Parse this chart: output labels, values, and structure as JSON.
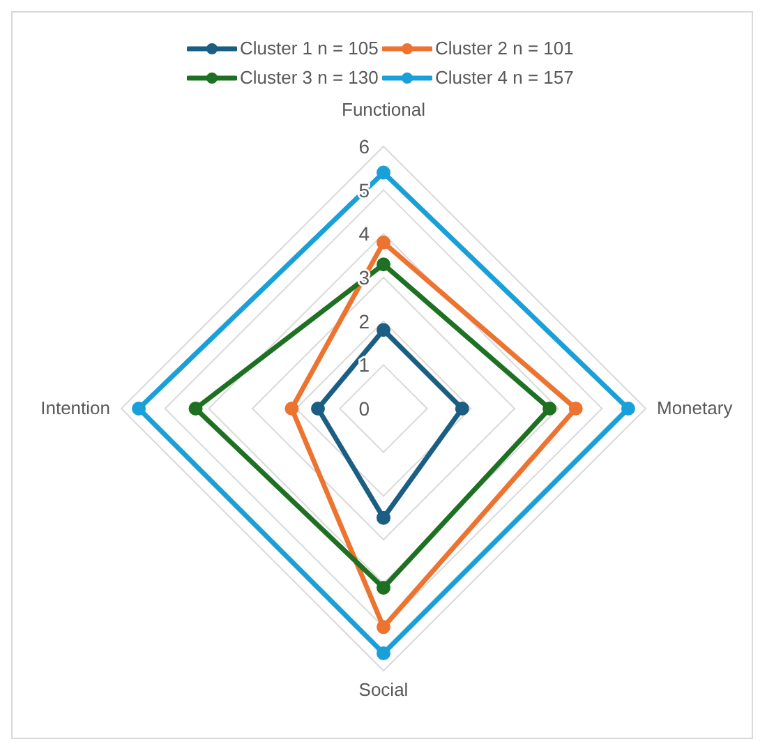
{
  "chart_data": {
    "type": "radar",
    "categories": [
      "Functional",
      "Monetary",
      "Social",
      "Intention"
    ],
    "series": [
      {
        "name": "Cluster 1 n = 105",
        "color": "#1b5e83",
        "values": [
          1.8,
          1.8,
          2.5,
          1.5
        ]
      },
      {
        "name": "Cluster 2 n = 101",
        "color": "#ed7330",
        "values": [
          3.8,
          4.4,
          5.0,
          2.1
        ]
      },
      {
        "name": "Cluster 3 n = 130",
        "color": "#1e7022",
        "values": [
          3.3,
          3.8,
          4.1,
          4.3
        ]
      },
      {
        "name": "Cluster 4 n = 157",
        "color": "#1aa0d8",
        "values": [
          5.4,
          5.6,
          5.6,
          5.6
        ]
      }
    ],
    "ylim": [
      0,
      6
    ],
    "yticks": [
      0,
      1,
      2,
      3,
      4,
      5,
      6
    ],
    "grid": true,
    "legend": "top",
    "marker": "circle",
    "line_style": "solid"
  }
}
